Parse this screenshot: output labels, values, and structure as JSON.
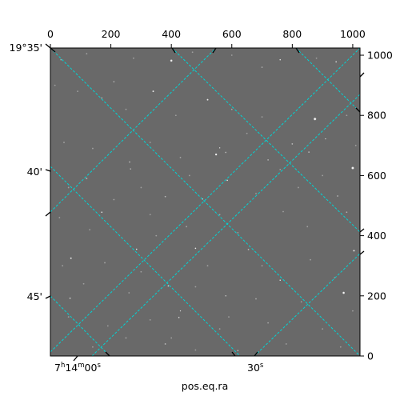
{
  "chart_data": {
    "type": "image",
    "title": "",
    "xlabel": "pos.eq.ra",
    "ylabel": "",
    "pixel_axes": {
      "x": {
        "ticks": [
          0,
          200,
          400,
          600,
          800,
          1000
        ],
        "lim": [
          0,
          1024
        ]
      },
      "y": {
        "ticks": [
          0,
          200,
          400,
          600,
          800,
          1000
        ],
        "lim": [
          0,
          1024
        ]
      }
    },
    "world_axes": {
      "ra": {
        "ticks": [
          {
            "h": "7",
            "m": "14",
            "s": "00",
            "label": "7h14m00s"
          },
          {
            "h": "",
            "m": "",
            "s": "30",
            "label": "30s"
          }
        ]
      },
      "dec": {
        "ticks": [
          "19°35'",
          "40'",
          "45'"
        ]
      }
    },
    "grid": true,
    "grid_color": "#00d5d5",
    "image_background": "#696969",
    "stars": [
      [
        400,
        982,
        8,
        0.95
      ],
      [
        760,
        985,
        5,
        0.85
      ],
      [
        945,
        978,
        5,
        0.85
      ],
      [
        210,
        912,
        4,
        0.8
      ],
      [
        340,
        880,
        6,
        0.9
      ],
      [
        520,
        852,
        6,
        0.9
      ],
      [
        170,
        858,
        4,
        0.75
      ],
      [
        875,
        788,
        9,
        1.0
      ],
      [
        910,
        722,
        4,
        0.8
      ],
      [
        800,
        705,
        3,
        0.7
      ],
      [
        560,
        692,
        4,
        0.8
      ],
      [
        548,
        670,
        7,
        1.0
      ],
      [
        580,
        677,
        3,
        0.7
      ],
      [
        855,
        678,
        3,
        0.7
      ],
      [
        262,
        645,
        3,
        0.7
      ],
      [
        1000,
        625,
        9,
        1.0
      ],
      [
        265,
        622,
        4,
        0.8
      ],
      [
        720,
        652,
        3,
        0.65
      ],
      [
        120,
        590,
        3,
        0.7
      ],
      [
        585,
        584,
        5,
        0.9
      ],
      [
        380,
        530,
        3,
        0.7
      ],
      [
        503,
        522,
        5,
        0.9
      ],
      [
        170,
        478,
        5,
        0.9
      ],
      [
        950,
        532,
        3,
        0.65
      ],
      [
        285,
        355,
        5,
        0.85
      ],
      [
        655,
        354,
        3,
        0.7
      ],
      [
        980,
        478,
        3,
        0.65
      ],
      [
        480,
        358,
        5,
        0.9
      ],
      [
        1004,
        350,
        6,
        0.95
      ],
      [
        68,
        325,
        6,
        0.9
      ],
      [
        760,
        252,
        5,
        0.85
      ],
      [
        390,
        233,
        5,
        0.85
      ],
      [
        580,
        200,
        4,
        0.8
      ],
      [
        970,
        210,
        8,
        1.0
      ],
      [
        65,
        192,
        5,
        0.85
      ],
      [
        430,
        150,
        4,
        0.8
      ],
      [
        425,
        128,
        5,
        0.85
      ],
      [
        380,
        40,
        3,
        0.7
      ],
      [
        620,
        18,
        3,
        0.7
      ],
      [
        400,
        60,
        2,
        0.5
      ],
      [
        35,
        985,
        2,
        0.55
      ],
      [
        120,
        1005,
        2,
        0.55
      ],
      [
        275,
        990,
        2,
        0.55
      ],
      [
        470,
        1010,
        2,
        0.5
      ],
      [
        600,
        1000,
        2,
        0.5
      ],
      [
        700,
        960,
        2,
        0.55
      ],
      [
        880,
        990,
        2,
        0.5
      ],
      [
        15,
        900,
        2,
        0.5
      ],
      [
        90,
        880,
        2,
        0.5
      ],
      [
        250,
        820,
        2,
        0.5
      ],
      [
        415,
        800,
        2,
        0.5
      ],
      [
        600,
        820,
        2,
        0.55
      ],
      [
        700,
        795,
        2,
        0.5
      ],
      [
        980,
        800,
        2,
        0.5
      ],
      [
        45,
        710,
        2,
        0.55
      ],
      [
        140,
        690,
        2,
        0.5
      ],
      [
        330,
        710,
        2,
        0.5
      ],
      [
        430,
        660,
        2,
        0.55
      ],
      [
        650,
        740,
        2,
        0.5
      ],
      [
        760,
        620,
        2,
        0.5
      ],
      [
        1010,
        700,
        2,
        0.5
      ],
      [
        60,
        560,
        2,
        0.5
      ],
      [
        210,
        520,
        2,
        0.55
      ],
      [
        300,
        560,
        2,
        0.5
      ],
      [
        460,
        600,
        2,
        0.5
      ],
      [
        680,
        540,
        2,
        0.5
      ],
      [
        820,
        560,
        2,
        0.5
      ],
      [
        900,
        600,
        2,
        0.5
      ],
      [
        30,
        460,
        2,
        0.5
      ],
      [
        130,
        420,
        2,
        0.5
      ],
      [
        330,
        470,
        2,
        0.5
      ],
      [
        450,
        430,
        2,
        0.55
      ],
      [
        560,
        470,
        2,
        0.5
      ],
      [
        620,
        410,
        2,
        0.5
      ],
      [
        770,
        480,
        2,
        0.5
      ],
      [
        850,
        430,
        2,
        0.5
      ],
      [
        40,
        300,
        2,
        0.5
      ],
      [
        180,
        310,
        2,
        0.55
      ],
      [
        300,
        280,
        2,
        0.5
      ],
      [
        520,
        300,
        2,
        0.5
      ],
      [
        700,
        300,
        2,
        0.5
      ],
      [
        860,
        320,
        2,
        0.5
      ],
      [
        940,
        260,
        2,
        0.5
      ],
      [
        110,
        240,
        2,
        0.5
      ],
      [
        260,
        210,
        2,
        0.5
      ],
      [
        480,
        230,
        2,
        0.5
      ],
      [
        680,
        190,
        2,
        0.55
      ],
      [
        830,
        180,
        2,
        0.5
      ],
      [
        1000,
        150,
        2,
        0.5
      ],
      [
        60,
        130,
        2,
        0.5
      ],
      [
        190,
        100,
        2,
        0.5
      ],
      [
        330,
        120,
        2,
        0.5
      ],
      [
        560,
        90,
        2,
        0.5
      ],
      [
        720,
        110,
        2,
        0.55
      ],
      [
        900,
        90,
        2,
        0.5
      ],
      [
        140,
        30,
        2,
        0.5
      ],
      [
        250,
        60,
        2,
        0.55
      ],
      [
        480,
        20,
        2,
        0.5
      ],
      [
        780,
        40,
        2,
        0.5
      ],
      [
        960,
        30,
        2,
        0.5
      ],
      [
        590,
        130,
        2,
        0.5
      ],
      [
        350,
        400,
        2,
        0.5
      ]
    ]
  }
}
